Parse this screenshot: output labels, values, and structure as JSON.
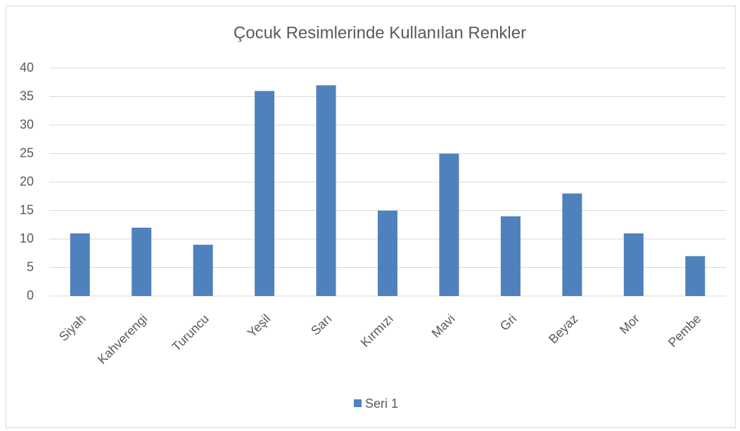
{
  "chart_data": {
    "type": "bar",
    "title": "Çocuk Resimlerinde Kullanılan Renkler",
    "categories": [
      "Siyah",
      "Kahverengi",
      "Turuncu",
      "Yeşil",
      "Sarı",
      "Kırmızı",
      "Mavi",
      "Gri",
      "Beyaz",
      "Mor",
      "Pembe"
    ],
    "series": [
      {
        "name": "Seri 1",
        "color": "#4f81bd",
        "values": [
          11,
          12,
          9,
          36,
          37,
          15,
          25,
          14,
          18,
          11,
          7
        ]
      }
    ],
    "ylim": [
      0,
      40
    ],
    "yticks": [
      0,
      5,
      10,
      15,
      20,
      25,
      30,
      35,
      40
    ],
    "grid": true,
    "legend": "bottom"
  }
}
